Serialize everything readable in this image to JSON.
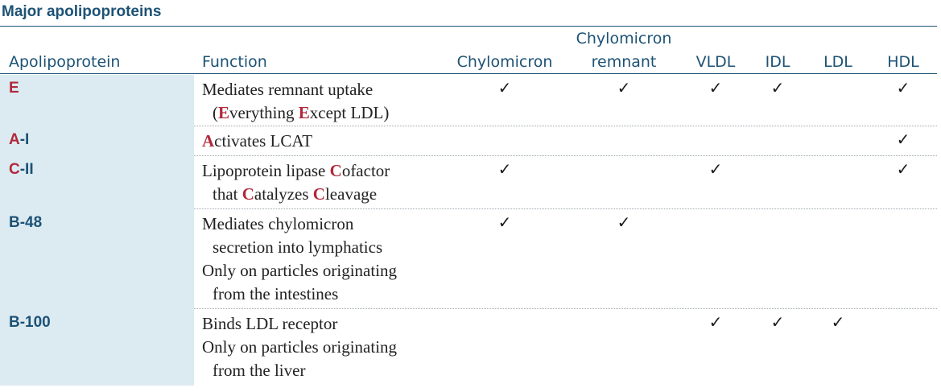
{
  "title": "Major apolipoproteins",
  "headers": {
    "apolipoprotein": "Apolipoprotein",
    "function": "Function",
    "chylomicron": "Chylomicron",
    "chylomicron_remnant_line1": "Chylomicron",
    "chylomicron_remnant_line2": "remnant",
    "vldl": "VLDL",
    "idl": "IDL",
    "ldl": "LDL",
    "hdl": "HDL"
  },
  "check_glyph": "✓",
  "rows": [
    {
      "apo_prefix": "E",
      "apo_suffix": "",
      "function_line1": "Mediates remnant uptake",
      "function_line2_parts": [
        "(",
        "E",
        "verything ",
        "E",
        "xcept LDL)"
      ],
      "presence": {
        "chylomicron": true,
        "chylomicron_remnant": true,
        "vldl": true,
        "idl": true,
        "ldl": false,
        "hdl": true
      }
    },
    {
      "apo_prefix": "A",
      "apo_suffix": "-I",
      "function_line1_parts": [
        "A",
        "ctivates LCAT"
      ],
      "presence": {
        "chylomicron": false,
        "chylomicron_remnant": false,
        "vldl": false,
        "idl": false,
        "ldl": false,
        "hdl": true
      }
    },
    {
      "apo_prefix": "C",
      "apo_suffix": "-II",
      "function_line1_parts": [
        "Lipoprotein lipase ",
        "C",
        "ofactor"
      ],
      "function_line2_parts": [
        "that ",
        "C",
        "atalyzes ",
        "C",
        "leavage"
      ],
      "presence": {
        "chylomicron": true,
        "chylomicron_remnant": false,
        "vldl": true,
        "idl": false,
        "ldl": false,
        "hdl": true
      }
    },
    {
      "apo_name": "B-48",
      "function_line1": "Mediates chylomicron",
      "function_line2": "secretion into lymphatics",
      "function_line3": "Only on particles originating",
      "function_line4": "from the intestines",
      "presence": {
        "chylomicron": true,
        "chylomicron_remnant": true,
        "vldl": false,
        "idl": false,
        "ldl": false,
        "hdl": false
      }
    },
    {
      "apo_name": "B-100",
      "function_line1": "Binds LDL receptor",
      "function_line2": "Only on particles originating",
      "function_line3": "from the liver",
      "presence": {
        "chylomicron": false,
        "chylomicron_remnant": false,
        "vldl": true,
        "idl": true,
        "ldl": true,
        "hdl": false
      }
    }
  ],
  "colors": {
    "accent_blue": "#1d5275",
    "accent_red": "#b2283a",
    "cell_fill": "#dcebf2"
  }
}
